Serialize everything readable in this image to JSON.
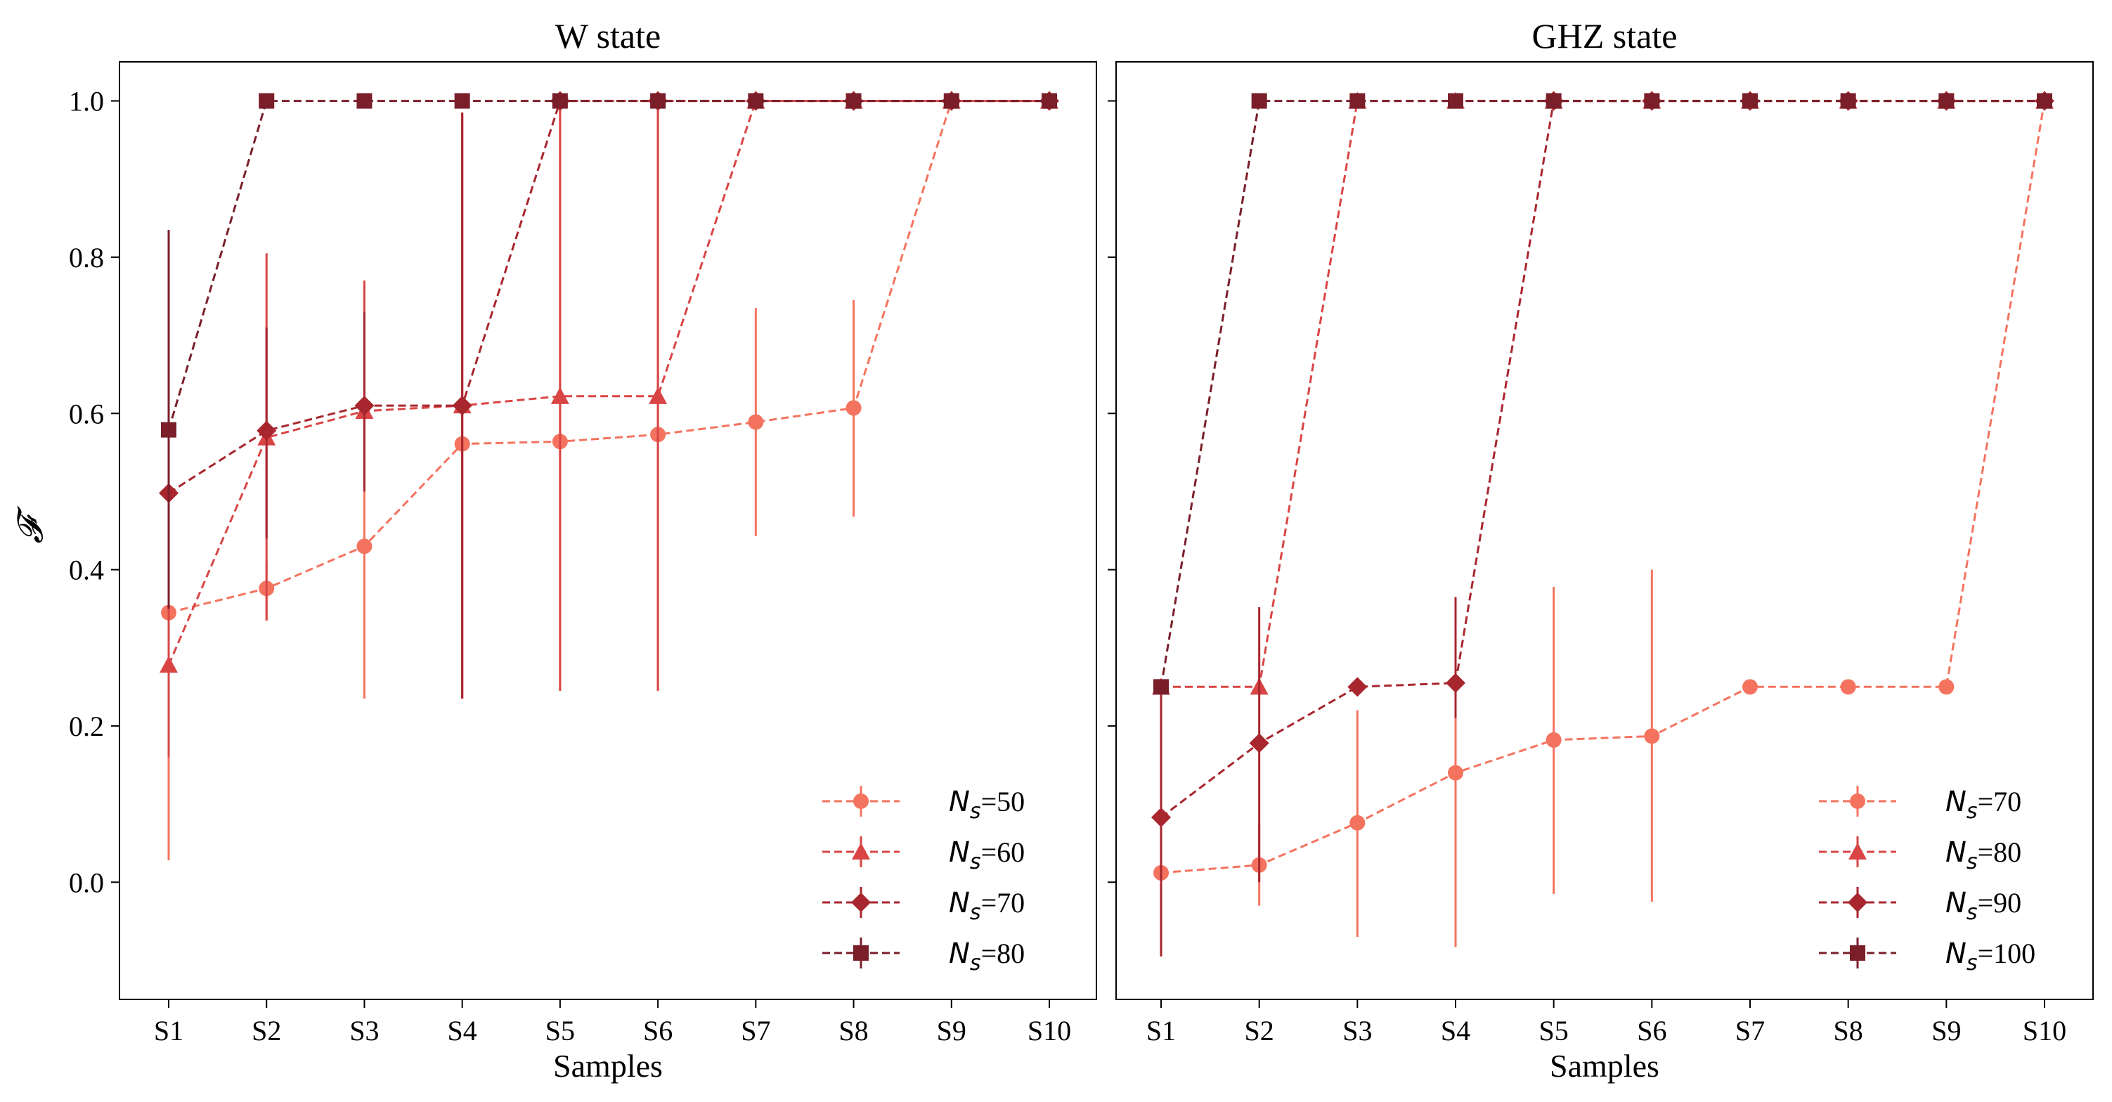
{
  "chart_data": [
    {
      "type": "line",
      "title": "W state",
      "xlabel": "Samples",
      "ylabel": "𝓕",
      "categories": [
        "S1",
        "S2",
        "S3",
        "S4",
        "S5",
        "S6",
        "S7",
        "S8",
        "S9",
        "S10"
      ],
      "ylim": [
        -0.15,
        1.05
      ],
      "yticks": [
        "0.0",
        "0.2",
        "0.4",
        "0.6",
        "0.8",
        "1.0"
      ],
      "legend_position": "lower-right",
      "series": [
        {
          "name": "Ns=50",
          "legend_symbol": "N",
          "legend_sub": "s",
          "legend_value": "=50",
          "color": "#f4735f",
          "marker": "circle",
          "values": [
            0.345,
            0.376,
            0.43,
            0.561,
            0.564,
            0.573,
            0.589,
            0.607,
            1.0,
            1.0
          ],
          "err_low": [
            0.028,
            0.335,
            0.235,
            0.235,
            0.245,
            0.245,
            0.443,
            0.468,
            1.0,
            1.0
          ],
          "err_high": [
            0.6,
            0.41,
            0.62,
            0.985,
            1.0,
            1.0,
            0.735,
            0.745,
            1.0,
            1.0
          ]
        },
        {
          "name": "Ns=60",
          "legend_symbol": "N",
          "legend_sub": "s",
          "legend_value": "=60",
          "color": "#d94545",
          "marker": "triangle",
          "values": [
            0.278,
            0.569,
            0.603,
            0.61,
            0.622,
            0.622,
            1.0,
            1.0,
            1.0,
            1.0
          ],
          "err_low": [
            0.16,
            0.335,
            0.5,
            0.235,
            0.245,
            0.245,
            1.0,
            1.0,
            1.0,
            1.0
          ],
          "err_high": [
            0.6,
            0.805,
            0.77,
            0.985,
            1.0,
            1.0,
            1.0,
            1.0,
            1.0,
            1.0
          ]
        },
        {
          "name": "Ns=70",
          "legend_symbol": "N",
          "legend_sub": "s",
          "legend_value": "=70",
          "color": "#a8262e",
          "marker": "diamond",
          "values": [
            0.498,
            0.578,
            0.61,
            0.61,
            1.0,
            1.0,
            1.0,
            1.0,
            1.0,
            1.0
          ],
          "err_low": [
            0.36,
            0.44,
            0.5,
            0.235,
            1.0,
            1.0,
            1.0,
            1.0,
            1.0,
            1.0
          ],
          "err_high": [
            0.65,
            0.71,
            0.73,
            0.985,
            1.0,
            1.0,
            1.0,
            1.0,
            1.0,
            1.0
          ]
        },
        {
          "name": "Ns=80",
          "legend_symbol": "N",
          "legend_sub": "s",
          "legend_value": "=80",
          "color": "#7a1f2a",
          "marker": "square",
          "values": [
            0.579,
            1.0,
            1.0,
            1.0,
            1.0,
            1.0,
            1.0,
            1.0,
            1.0,
            1.0
          ],
          "err_low": [
            0.35,
            1.0,
            1.0,
            1.0,
            1.0,
            1.0,
            1.0,
            1.0,
            1.0,
            1.0
          ],
          "err_high": [
            0.835,
            1.0,
            1.0,
            1.0,
            1.0,
            1.0,
            1.0,
            1.0,
            1.0,
            1.0
          ]
        }
      ]
    },
    {
      "type": "line",
      "title": "GHZ state",
      "xlabel": "Samples",
      "ylabel": "",
      "categories": [
        "S1",
        "S2",
        "S3",
        "S4",
        "S5",
        "S6",
        "S7",
        "S8",
        "S9",
        "S10"
      ],
      "ylim": [
        -0.15,
        1.05
      ],
      "yticks": [],
      "legend_position": "lower-right",
      "series": [
        {
          "name": "Ns=70",
          "legend_symbol": "N",
          "legend_sub": "s",
          "legend_value": "=70",
          "color": "#f4735f",
          "marker": "circle",
          "values": [
            0.012,
            0.022,
            0.076,
            0.14,
            0.182,
            0.187,
            0.25,
            0.25,
            0.25,
            1.0
          ],
          "err_low": [
            -0.095,
            -0.03,
            -0.07,
            -0.083,
            -0.015,
            -0.025,
            0.25,
            0.25,
            0.25,
            1.0
          ],
          "err_high": [
            0.12,
            0.075,
            0.22,
            0.36,
            0.378,
            0.4,
            0.25,
            0.25,
            0.25,
            1.0
          ]
        },
        {
          "name": "Ns=80",
          "legend_symbol": "N",
          "legend_sub": "s",
          "legend_value": "=80",
          "color": "#d94545",
          "marker": "triangle",
          "values": [
            0.25,
            0.25,
            1.0,
            1.0,
            1.0,
            1.0,
            1.0,
            1.0,
            1.0,
            1.0
          ],
          "err_low": [
            0.25,
            0.25,
            1.0,
            1.0,
            1.0,
            1.0,
            1.0,
            1.0,
            1.0,
            1.0
          ],
          "err_high": [
            0.25,
            0.25,
            1.0,
            1.0,
            1.0,
            1.0,
            1.0,
            1.0,
            1.0,
            1.0
          ]
        },
        {
          "name": "Ns=90",
          "legend_symbol": "N",
          "legend_sub": "s",
          "legend_value": "=90",
          "color": "#a8262e",
          "marker": "diamond",
          "values": [
            0.083,
            0.178,
            0.25,
            0.255,
            1.0,
            1.0,
            1.0,
            1.0,
            1.0,
            1.0
          ],
          "err_low": [
            -0.095,
            0.0,
            0.25,
            0.21,
            1.0,
            1.0,
            1.0,
            1.0,
            1.0,
            1.0
          ],
          "err_high": [
            0.25,
            0.352,
            0.25,
            0.365,
            1.0,
            1.0,
            1.0,
            1.0,
            1.0,
            1.0
          ]
        },
        {
          "name": "Ns=100",
          "legend_symbol": "N",
          "legend_sub": "s",
          "legend_value": "=100",
          "color": "#7a1f2a",
          "marker": "square",
          "values": [
            0.25,
            1.0,
            1.0,
            1.0,
            1.0,
            1.0,
            1.0,
            1.0,
            1.0,
            1.0
          ],
          "err_low": [
            0.25,
            1.0,
            1.0,
            1.0,
            1.0,
            1.0,
            1.0,
            1.0,
            1.0,
            1.0
          ],
          "err_high": [
            0.25,
            1.0,
            1.0,
            1.0,
            1.0,
            1.0,
            1.0,
            1.0,
            1.0,
            1.0
          ]
        }
      ]
    }
  ]
}
